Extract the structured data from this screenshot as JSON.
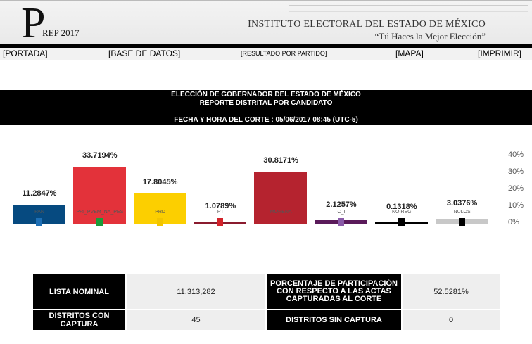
{
  "header": {
    "logo_letter": "P",
    "logo_text": "REP 2017",
    "institute": "INSTITUTO ELECTORAL DEL ESTADO DE MÉXICO",
    "slogan": "“Tú Haces la Mejor Elección”"
  },
  "nav": {
    "portada": "[PORTADA]",
    "base": "[BASE DE DATOS]",
    "resultado": "[RESULTADO POR PARTIDO]",
    "mapa": "[MAPA]",
    "imprimir": "[IMPRIMIR]"
  },
  "banner": {
    "line1": "ELECCIÓN DE GOBERNADOR DEL ESTADO DE MÉXICO",
    "line2": "REPORTE DISTRITAL POR CANDIDATO",
    "line3": "FECHA Y HORA DEL CORTE : 05/06/2017 08:45 (UTC-5)"
  },
  "chart_data": {
    "type": "bar",
    "categories": [
      "PAN",
      "PRI_PVEM_NA_PES",
      "PRD",
      "PT",
      "MORENA",
      "C_I",
      "NO REG",
      "NULOS"
    ],
    "values": [
      11.2847,
      33.7194,
      17.8045,
      1.0789,
      30.8171,
      2.1257,
      0.1318,
      3.0376
    ],
    "labels": [
      "11.2847%",
      "33.7194%",
      "17.8045%",
      "1.0789%",
      "30.8171%",
      "2.1257%",
      "0.1318%",
      "3.0376%"
    ],
    "colors": [
      "#064a80",
      "#e3323a",
      "#fccf00",
      "#8a1b2e",
      "#b5232f",
      "#5a1a5a",
      "#000000",
      "#c8c8c8"
    ],
    "logo_colors": [
      "#1e6fb5",
      "#1a9b3a",
      "#f2c500",
      "#d2232a",
      "#b5232f",
      "#8a5aa8",
      "#000000",
      "#000000"
    ],
    "yticks": [
      "0%",
      "10%",
      "20%",
      "30%",
      "40%"
    ],
    "ylim": [
      0,
      40
    ]
  },
  "stats": {
    "lista_label": "LISTA NOMINAL",
    "lista_value": "11,313,282",
    "part_label": "PORCENTAJE DE PARTICIPACIÓN CON RESPECTO A LAS ACTAS CAPTURADAS AL CORTE",
    "part_value": "52.5281%",
    "con_label": "DISTRITOS CON CAPTURA",
    "con_value": "45",
    "sin_label": "DISTRITOS SIN CAPTURA",
    "sin_value": "0"
  }
}
